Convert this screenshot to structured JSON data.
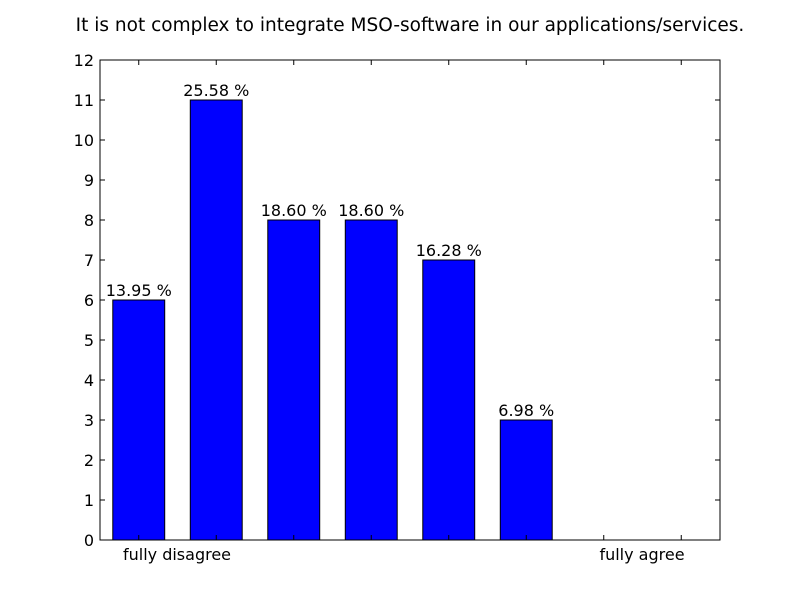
{
  "chart_data": {
    "type": "bar",
    "title": "It is not complex to integrate MSO-software in our applications/services.",
    "categories": [
      "",
      "",
      "",
      "",
      "",
      "",
      ""
    ],
    "values": [
      6,
      11,
      8,
      8,
      7,
      3,
      0
    ],
    "data_labels": [
      "13.95 %",
      "25.58 %",
      "18.60 %",
      "18.60 %",
      "16.28 %",
      "6.98 %",
      ""
    ],
    "x_end_labels": {
      "left": "fully disagree",
      "right": "fully agree"
    },
    "xlabel": "",
    "ylabel": "",
    "ylim": [
      0,
      12
    ],
    "yticks": [
      0,
      1,
      2,
      3,
      4,
      5,
      6,
      7,
      8,
      9,
      10,
      11,
      12
    ],
    "grid": false,
    "legend": "none",
    "colors": {
      "bar": "#0000ff",
      "bar_edge": "#000000",
      "axes": "#000000",
      "background": "#ffffff"
    }
  }
}
